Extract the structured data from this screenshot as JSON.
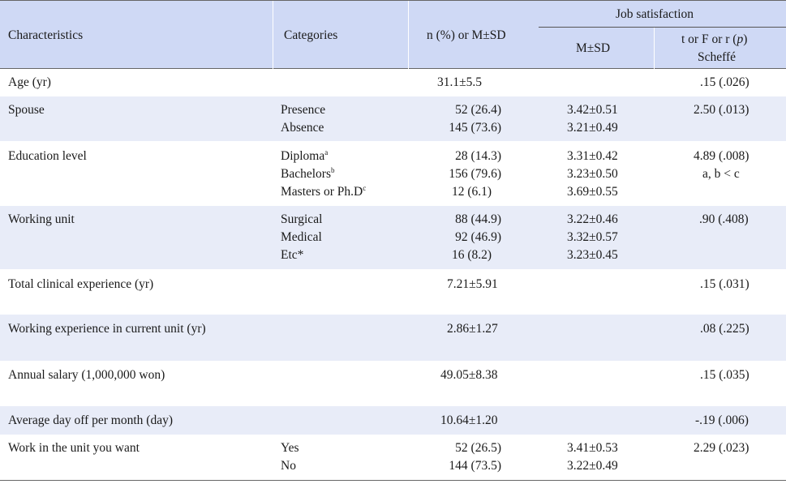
{
  "header": {
    "characteristics": "Characteristics",
    "categories": "Categories",
    "n_pct": "n (%) or M±SD",
    "job_satisfaction": "Job satisfaction",
    "msd": "M±SD",
    "stat_line1_pre": "t or F or r (",
    "stat_line1_p": "p",
    "stat_line1_post": ")",
    "stat_line2": "Scheffé"
  },
  "rows": [
    {
      "characteristic": "Age (yr)",
      "categories": [],
      "n": [
        "31.1±5.5"
      ],
      "msd": [],
      "stat": [
        "",
        ""
      ]
    },
    {
      "characteristic": "Spouse",
      "categories": [
        "Presence",
        "Absence"
      ],
      "n": [
        "52 (26.4)",
        "145 (73.6)"
      ],
      "msd": [
        "3.42±0.51",
        "3.21±0.49"
      ],
      "stat": [
        "2.50 (.013)",
        ""
      ]
    },
    {
      "characteristic": "Education level",
      "categories": [
        "Diploma",
        "Bachelors",
        "Masters or Ph.D"
      ],
      "sups": [
        "a",
        "b",
        "c"
      ],
      "n": [
        "28 (14.3)",
        "156 (79.6)",
        "12 (6.1)"
      ],
      "msd": [
        "3.31±0.42",
        "3.23±0.50",
        "3.69±0.55"
      ],
      "stat": [
        "4.89 (.008)",
        "a, b < c"
      ]
    },
    {
      "characteristic": "Working unit",
      "categories": [
        "Surgical",
        "Medical",
        "Etc*"
      ],
      "n": [
        "88 (44.9)",
        "92 (46.9)",
        "16 (8.2)"
      ],
      "msd": [
        "3.22±0.46",
        "3.32±0.57",
        "3.23±0.45"
      ],
      "stat": [
        ".90 (.408)",
        ""
      ]
    },
    {
      "characteristic": "Total clinical experience (yr)",
      "categories": [],
      "n": [
        "7.21±5.91"
      ],
      "msd": [],
      "stat": [
        ".15 (.031)",
        ""
      ]
    },
    {
      "characteristic": "Working experience in  current unit  (yr)",
      "categories": [],
      "n": [
        "2.86±1.27"
      ],
      "msd": [],
      "stat": [
        ".08 (.225)",
        ""
      ]
    },
    {
      "characteristic": "Annual salary (1,000,000 won)",
      "categories": [],
      "n": [
        "49.05±8.38"
      ],
      "msd": [],
      "stat": [
        ".15 (.035)",
        ""
      ]
    },
    {
      "characteristic": "Average day off per month (day)",
      "categories": [],
      "n": [
        "10.64±1.20"
      ],
      "msd": [],
      "stat": [
        "-.19 (.006)",
        ""
      ]
    },
    {
      "characteristic": "Work in the unit you want",
      "categories": [
        "Yes",
        "No"
      ],
      "n": [
        "52 (26.5)",
        "144 (73.5)"
      ],
      "msd": [
        "3.41±0.53",
        "3.22±0.49"
      ],
      "stat": [
        "2.29 (.023)",
        ""
      ]
    }
  ],
  "age_stat": ".15 (.026)"
}
